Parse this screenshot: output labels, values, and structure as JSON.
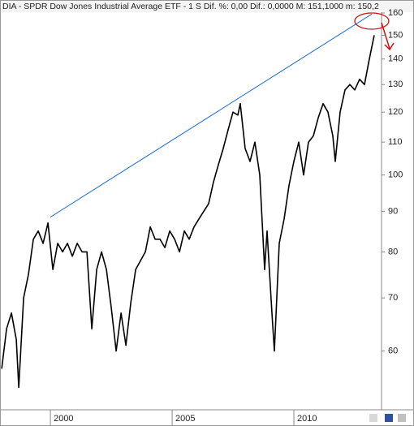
{
  "chart_data": {
    "type": "line",
    "title": "DIA - SPDR Dow Jones Industrial Average ETF - 1 S  Dif. %: 0,00  Dif.: 0,0000  M: 151,1000  m: 150,2",
    "log_scale": true,
    "xlim": [
      1997.93,
      2013.6
    ],
    "xticks": [
      2000,
      2005,
      2010
    ],
    "ylim": [
      50.6,
      160
    ],
    "yticks": [
      60,
      70,
      80,
      90,
      100,
      110,
      120,
      130,
      140,
      150,
      160
    ],
    "series": [
      {
        "color": "#000000",
        "x": [
          1998.0,
          1998.2,
          1998.4,
          1998.6,
          1998.7,
          1998.9,
          1999.1,
          1999.3,
          1999.5,
          1999.7,
          1999.9,
          2000.1,
          2000.3,
          2000.5,
          2000.7,
          2000.9,
          2001.1,
          2001.3,
          2001.5,
          2001.7,
          2001.9,
          2002.1,
          2002.3,
          2002.5,
          2002.7,
          2002.9,
          2003.1,
          2003.3,
          2003.5,
          2003.7,
          2003.9,
          2004.1,
          2004.3,
          2004.5,
          2004.7,
          2004.9,
          2005.1,
          2005.3,
          2005.5,
          2005.7,
          2005.9,
          2006.1,
          2006.3,
          2006.5,
          2006.7,
          2006.9,
          2007.1,
          2007.3,
          2007.5,
          2007.7,
          2007.8,
          2008.0,
          2008.2,
          2008.4,
          2008.6,
          2008.8,
          2008.9,
          2009.1,
          2009.2,
          2009.4,
          2009.6,
          2009.8,
          2010.0,
          2010.2,
          2010.4,
          2010.6,
          2010.8,
          2011.0,
          2011.2,
          2011.4,
          2011.6,
          2011.7,
          2011.9,
          2012.1,
          2012.3,
          2012.5,
          2012.7,
          2012.9,
          2013.1,
          2013.3
        ],
        "values": [
          57,
          64,
          67,
          62,
          54,
          70,
          75,
          83,
          85,
          82,
          87,
          76,
          82,
          80,
          82,
          79,
          82,
          80,
          80,
          64,
          76,
          80,
          76,
          68,
          60,
          67,
          61,
          69,
          76,
          78,
          80,
          86,
          83,
          83,
          81,
          85,
          83,
          80,
          85,
          83,
          86,
          88,
          90,
          92,
          98,
          103,
          108,
          114,
          120,
          119,
          123,
          108,
          104,
          110,
          100,
          76,
          85,
          67,
          60,
          82,
          88,
          97,
          104,
          110,
          100,
          110,
          112,
          118,
          123,
          120,
          112,
          104,
          120,
          128,
          130,
          128,
          132,
          130,
          140,
          150
        ]
      }
    ],
    "trendline": {
      "color": "#1e6fd0",
      "x": [
        2000.0,
        2013.2
      ],
      "values": [
        88.5,
        159.5
      ]
    }
  }
}
